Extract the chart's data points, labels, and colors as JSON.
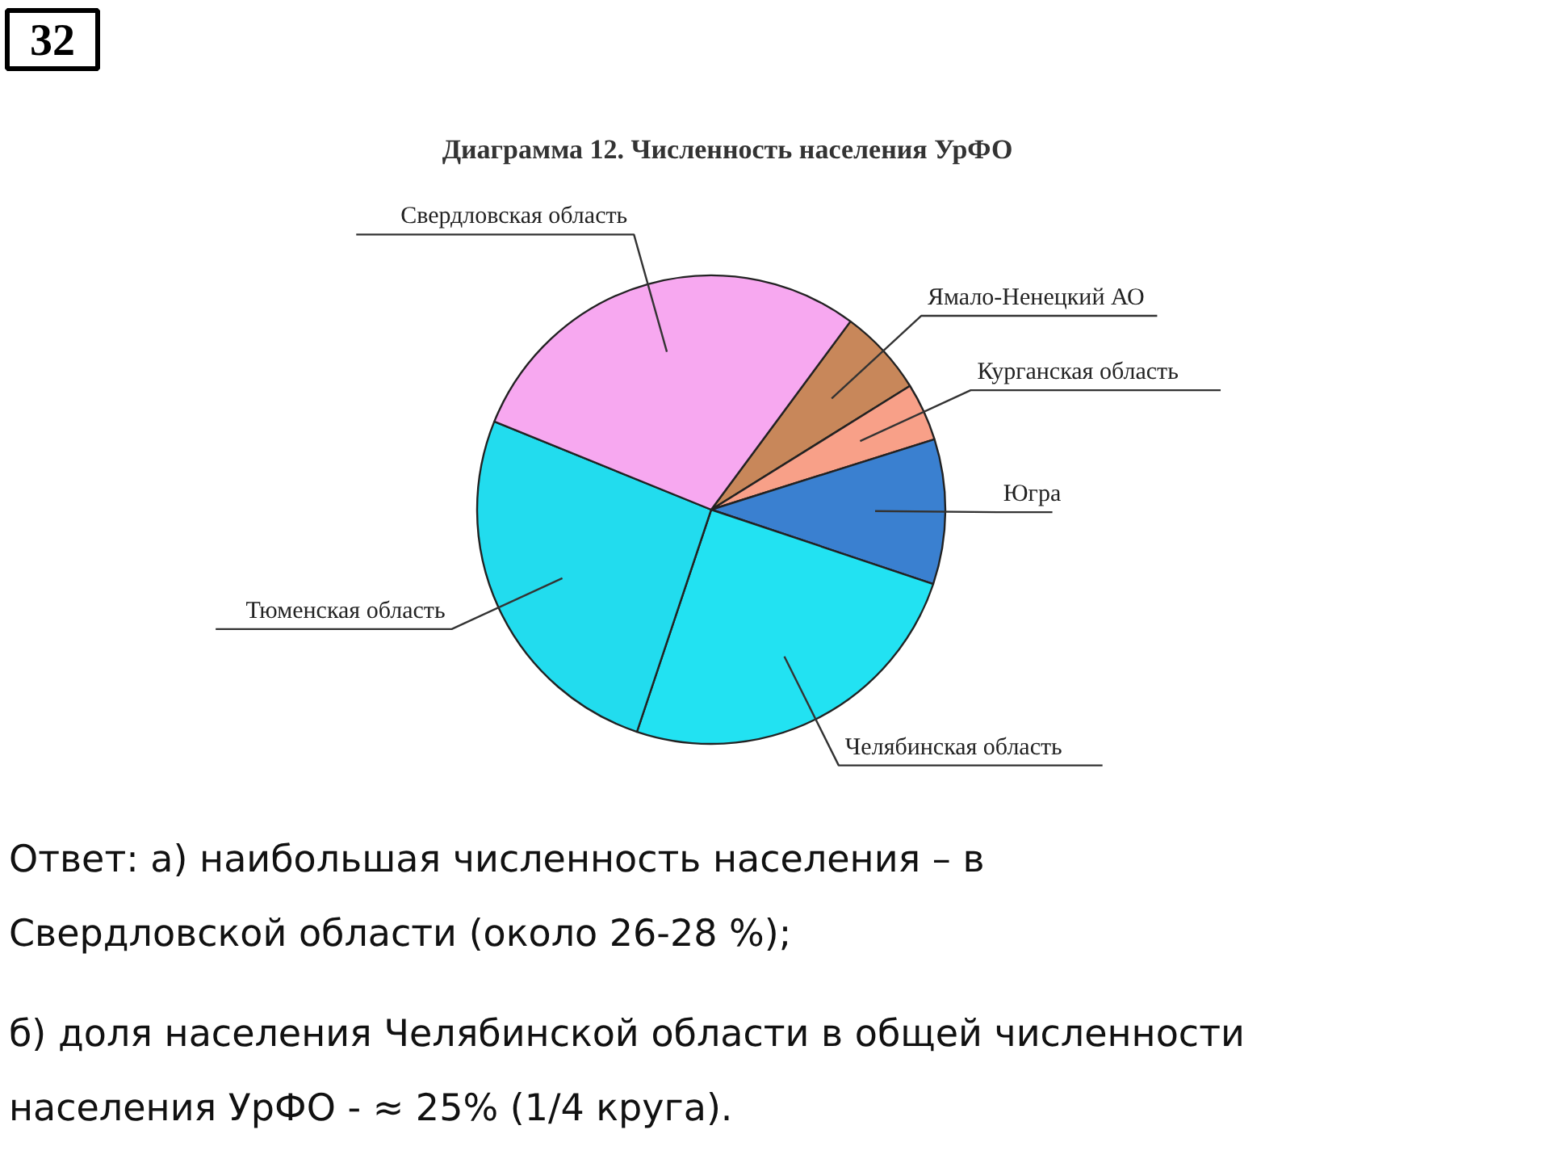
{
  "chart_data": {
    "type": "pie",
    "title": "Диаграмма 12. Численность населения УрФО",
    "categories": [
      "Ямало-Ненецкий АО",
      "Курганская область",
      "Югра",
      "Челябинская область",
      "Тюменская область",
      "Свердловская область"
    ],
    "values": [
      6,
      4,
      10,
      25,
      26,
      29
    ],
    "colors": [
      "#c8875a",
      "#f8a088",
      "#3a80d0",
      "#22e2f2",
      "#22dcee",
      "#f7a8f0"
    ],
    "annotations": [
      "32",
      "Ответ: а) наибольшая численность населения – в Свердловской области (около 26-28 %);",
      "б) доля населения Челябинской области в общей численности населения УрФО - ≈ 25% (1/4 круга)."
    ],
    "data_labels": false
  }
}
